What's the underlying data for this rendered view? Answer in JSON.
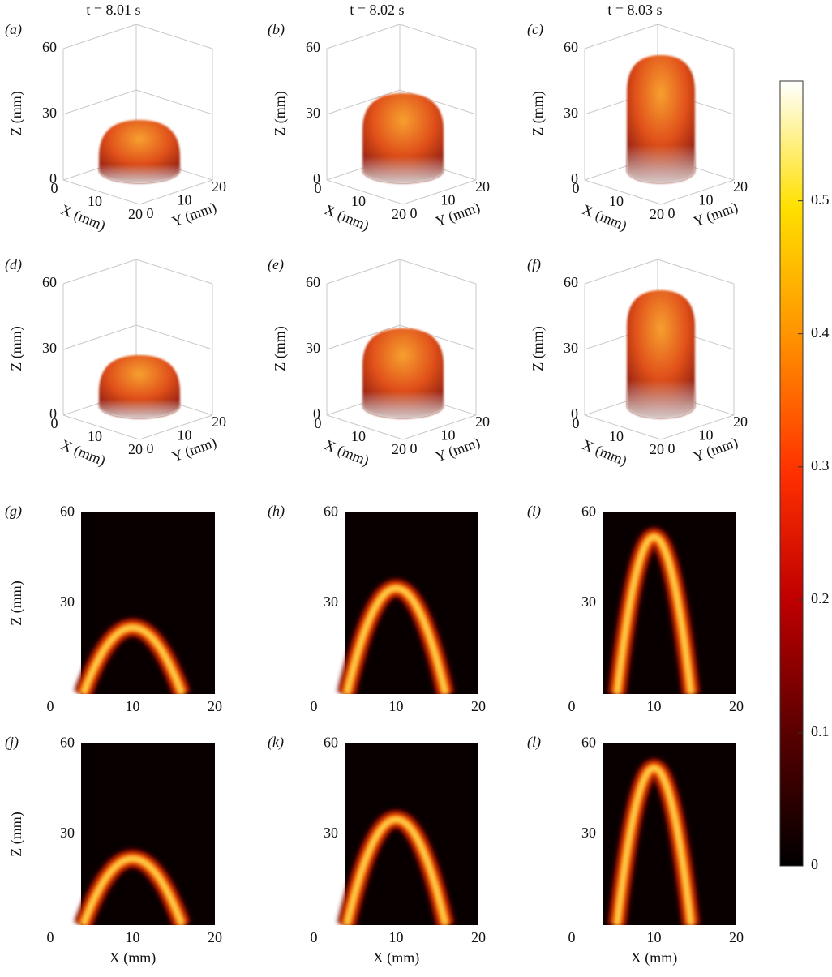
{
  "columns": [
    "t = 8.01 s",
    "t = 8.02 s",
    "t = 8.03 s"
  ],
  "panels": [
    "(a)",
    "(b)",
    "(c)",
    "(d)",
    "(e)",
    "(f)",
    "(g)",
    "(h)",
    "(i)",
    "(j)",
    "(k)",
    "(l)"
  ],
  "axes3d": {
    "z_label": "Z (mm)",
    "x_label": "X (mm)",
    "y_label": "Y (mm)",
    "z_ticks": [
      0,
      30,
      60
    ],
    "x_ticks": [
      0,
      10,
      20
    ],
    "y_ticks": [
      0,
      10,
      20
    ]
  },
  "axes2d": {
    "z_label": "Z (mm)",
    "x_label": "X (mm)",
    "z_ticks": [
      30,
      60
    ],
    "x_ticks": [
      0,
      10,
      20
    ]
  },
  "colorbar": {
    "lim": [
      0,
      0.59
    ],
    "ticks": [
      0,
      0.1,
      0.2,
      0.3,
      0.4,
      0.5
    ]
  }
}
